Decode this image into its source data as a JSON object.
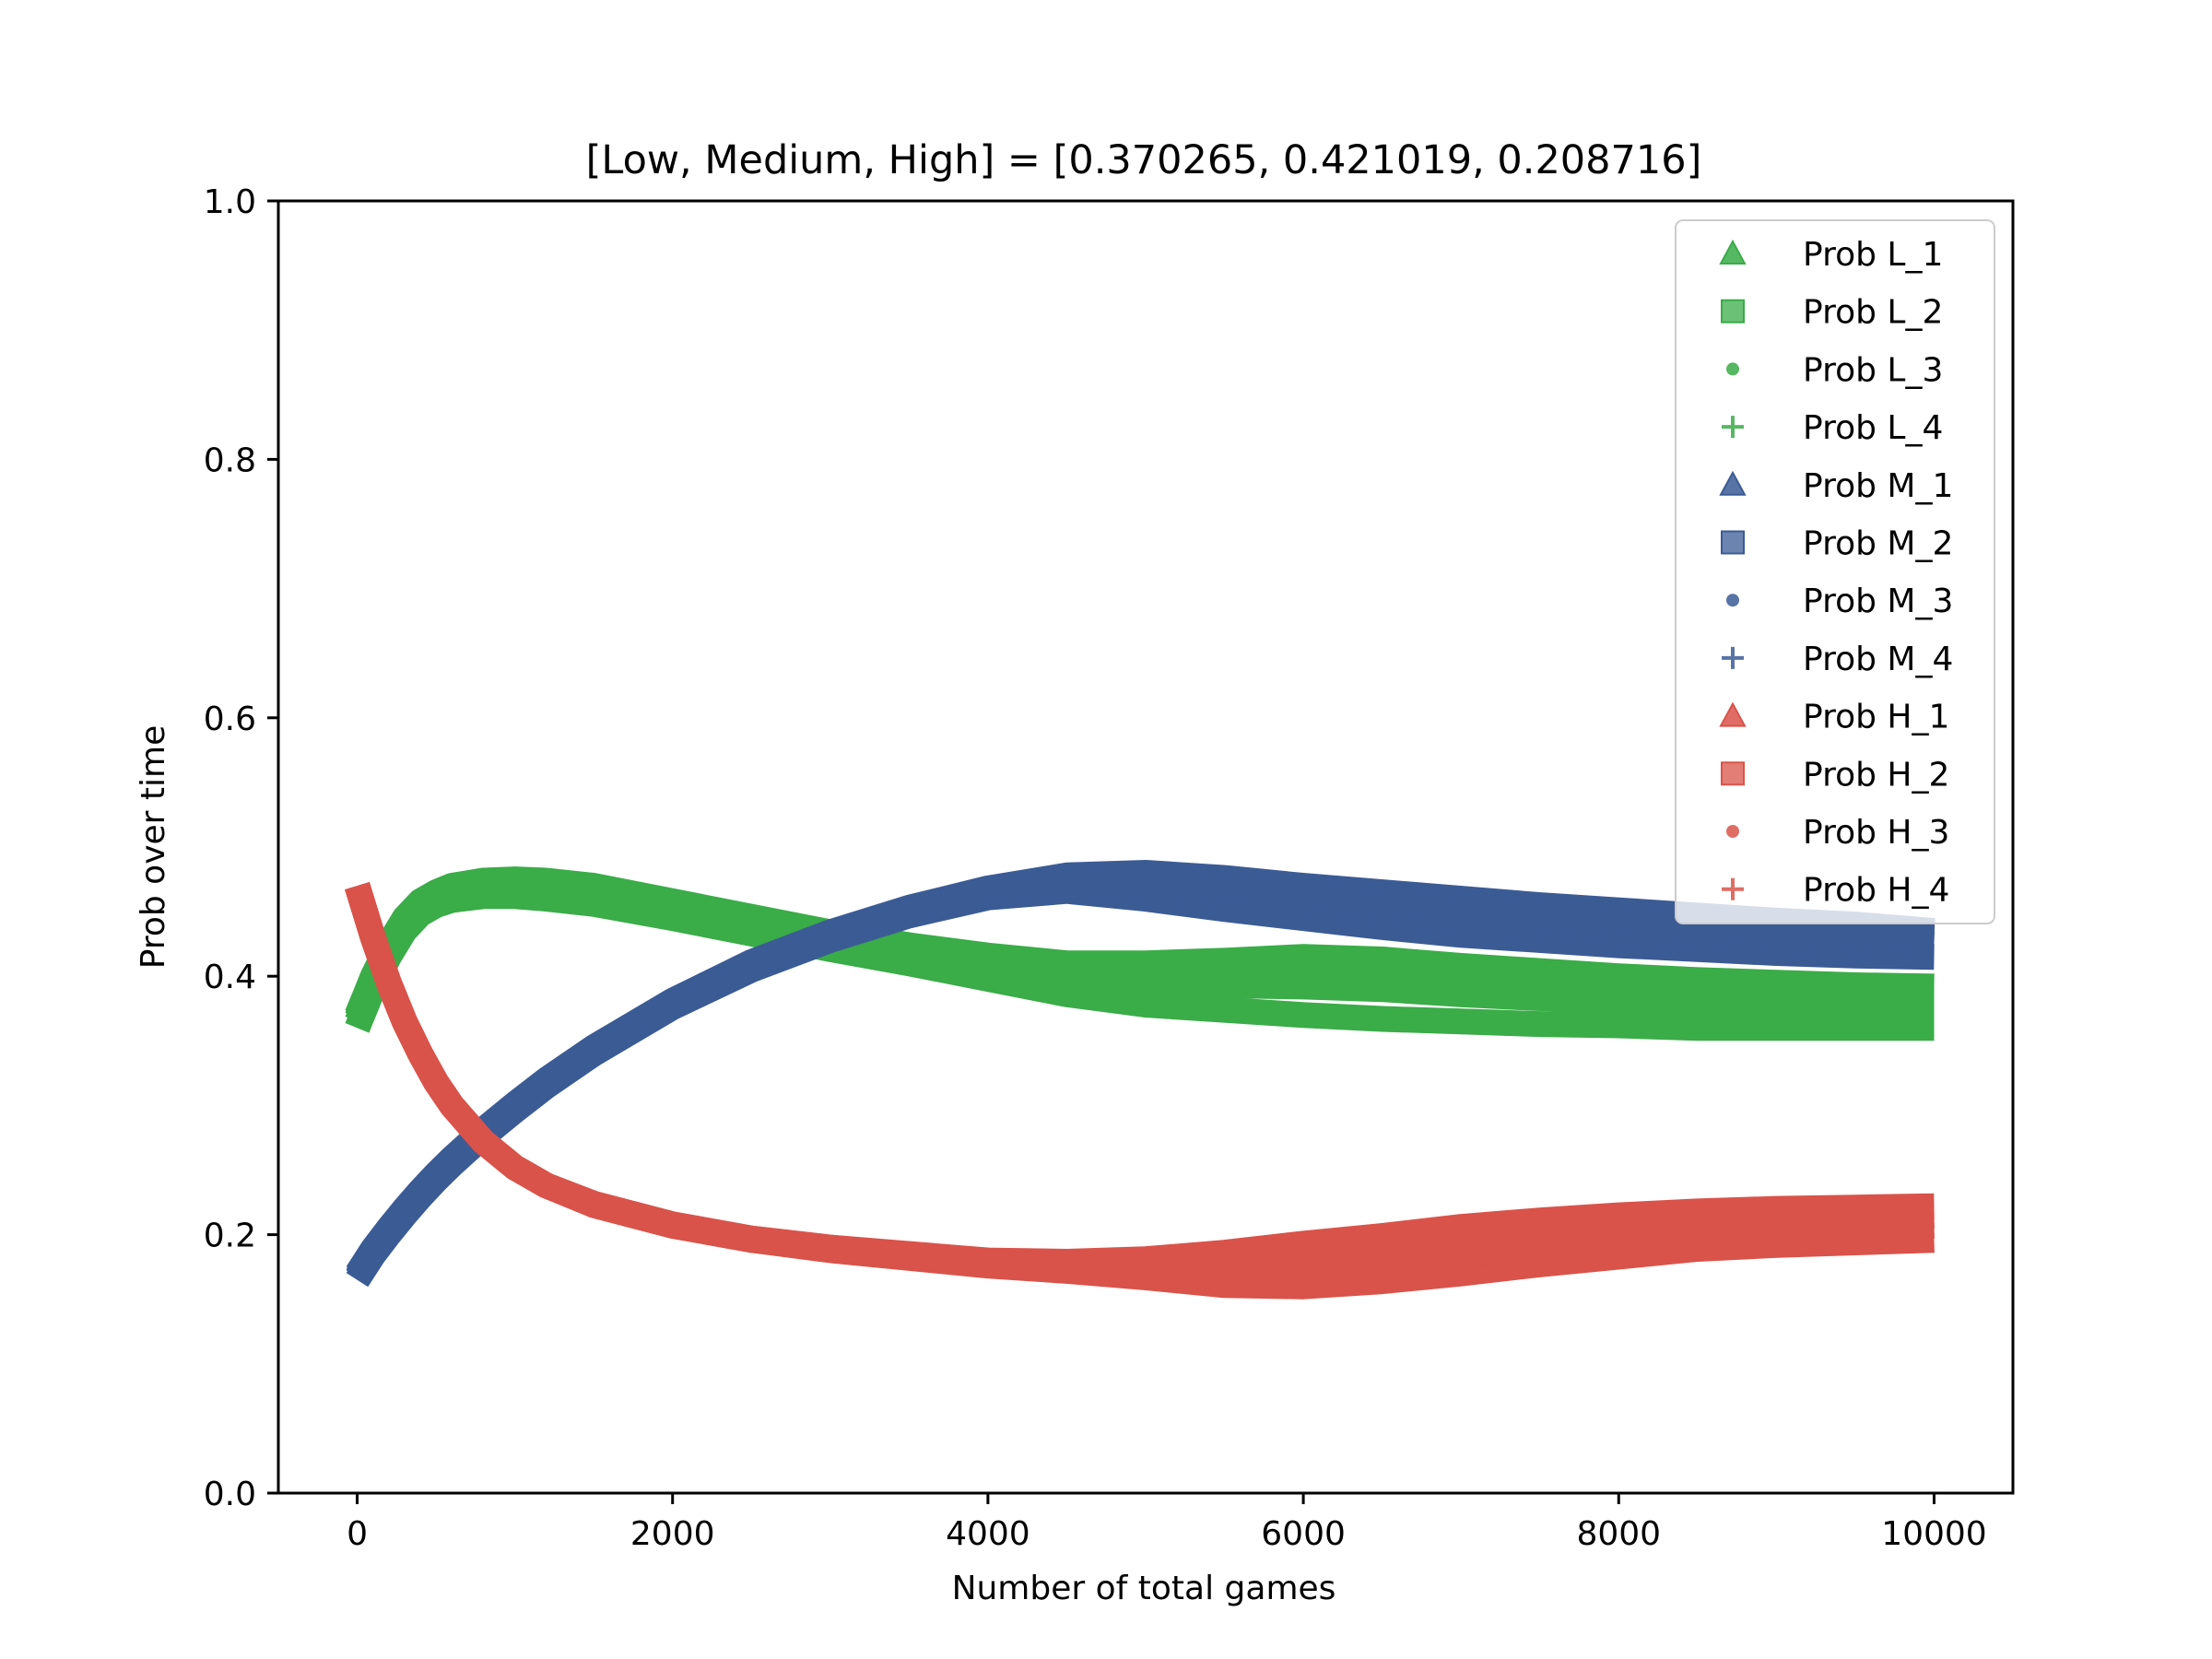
{
  "chart_data": {
    "type": "scatter",
    "title": "[Low, Medium, High] = [0.370265, 0.421019, 0.208716]",
    "xlabel": "Number of total games",
    "ylabel": "Prob over time",
    "xlim": [
      -500,
      10500
    ],
    "ylim": [
      0.0,
      1.0
    ],
    "x_ticks": [
      0,
      2000,
      4000,
      6000,
      8000,
      10000
    ],
    "x_tick_labels": [
      "0",
      "2000",
      "4000",
      "6000",
      "8000",
      "10000"
    ],
    "y_ticks": [
      0.0,
      0.2,
      0.4,
      0.6,
      0.8,
      1.0
    ],
    "y_tick_labels": [
      "0.0",
      "0.2",
      "0.4",
      "0.6",
      "0.8",
      "1.0"
    ],
    "grid": false,
    "legend_position": "top-right",
    "x": [
      0,
      100,
      200,
      300,
      400,
      500,
      600,
      800,
      1000,
      1200,
      1500,
      2000,
      2500,
      3000,
      3500,
      4000,
      4500,
      5000,
      5500,
      6000,
      6500,
      7000,
      7500,
      8000,
      8500,
      9000,
      9500,
      10000
    ],
    "series": [
      {
        "name": "Prob L_1",
        "color": "#3aac48",
        "marker": "triangle",
        "values": [
          0.37,
          0.4,
          0.425,
          0.445,
          0.458,
          0.465,
          0.47,
          0.474,
          0.475,
          0.474,
          0.47,
          0.458,
          0.446,
          0.434,
          0.424,
          0.416,
          0.41,
          0.41,
          0.412,
          0.415,
          0.413,
          0.408,
          0.404,
          0.4,
          0.397,
          0.395,
          0.393,
          0.392
        ]
      },
      {
        "name": "Prob L_2",
        "color": "#3aac48",
        "marker": "square",
        "values": [
          0.36,
          0.39,
          0.415,
          0.435,
          0.448,
          0.455,
          0.459,
          0.462,
          0.462,
          0.46,
          0.456,
          0.445,
          0.433,
          0.421,
          0.41,
          0.398,
          0.386,
          0.378,
          0.374,
          0.37,
          0.367,
          0.365,
          0.363,
          0.362,
          0.36,
          0.36,
          0.36,
          0.36
        ]
      },
      {
        "name": "Prob L_3",
        "color": "#3aac48",
        "marker": "circle",
        "values": [
          0.365,
          0.395,
          0.42,
          0.44,
          0.453,
          0.46,
          0.464,
          0.468,
          0.468,
          0.467,
          0.463,
          0.451,
          0.439,
          0.427,
          0.417,
          0.407,
          0.398,
          0.394,
          0.393,
          0.392,
          0.39,
          0.386,
          0.383,
          0.381,
          0.378,
          0.377,
          0.376,
          0.376
        ]
      },
      {
        "name": "Prob L_4",
        "color": "#3aac48",
        "marker": "plus",
        "values": [
          0.368,
          0.398,
          0.422,
          0.442,
          0.455,
          0.462,
          0.467,
          0.471,
          0.471,
          0.47,
          0.466,
          0.454,
          0.442,
          0.43,
          0.42,
          0.411,
          0.403,
          0.401,
          0.402,
          0.403,
          0.401,
          0.397,
          0.393,
          0.39,
          0.387,
          0.386,
          0.384,
          0.384
        ]
      },
      {
        "name": "Prob M_1",
        "color": "#3b5b95",
        "marker": "triangle",
        "values": [
          0.165,
          0.184,
          0.2,
          0.215,
          0.229,
          0.242,
          0.254,
          0.276,
          0.296,
          0.315,
          0.34,
          0.376,
          0.405,
          0.428,
          0.447,
          0.461,
          0.466,
          0.46,
          0.452,
          0.445,
          0.438,
          0.432,
          0.428,
          0.424,
          0.421,
          0.418,
          0.416,
          0.415
        ]
      },
      {
        "name": "Prob M_2",
        "color": "#3b5b95",
        "marker": "square",
        "values": [
          0.17,
          0.189,
          0.205,
          0.22,
          0.234,
          0.247,
          0.259,
          0.281,
          0.301,
          0.32,
          0.345,
          0.381,
          0.411,
          0.434,
          0.453,
          0.468,
          0.478,
          0.48,
          0.476,
          0.47,
          0.465,
          0.46,
          0.455,
          0.451,
          0.447,
          0.443,
          0.44,
          0.435
        ]
      },
      {
        "name": "Prob M_3",
        "color": "#3b5b95",
        "marker": "circle",
        "values": [
          0.167,
          0.186,
          0.202,
          0.217,
          0.231,
          0.244,
          0.256,
          0.278,
          0.298,
          0.317,
          0.342,
          0.378,
          0.407,
          0.43,
          0.449,
          0.463,
          0.47,
          0.468,
          0.462,
          0.455,
          0.449,
          0.443,
          0.439,
          0.435,
          0.432,
          0.429,
          0.427,
          0.425
        ]
      },
      {
        "name": "Prob M_4",
        "color": "#3b5b95",
        "marker": "plus",
        "values": [
          0.168,
          0.187,
          0.203,
          0.218,
          0.232,
          0.245,
          0.257,
          0.279,
          0.299,
          0.318,
          0.343,
          0.379,
          0.409,
          0.432,
          0.451,
          0.466,
          0.474,
          0.474,
          0.469,
          0.462,
          0.457,
          0.451,
          0.447,
          0.443,
          0.439,
          0.436,
          0.433,
          0.43
        ]
      },
      {
        "name": "Prob H_1",
        "color": "#d9534a",
        "marker": "triangle",
        "values": [
          0.47,
          0.43,
          0.395,
          0.365,
          0.34,
          0.318,
          0.3,
          0.272,
          0.252,
          0.238,
          0.223,
          0.207,
          0.196,
          0.188,
          0.182,
          0.176,
          0.172,
          0.167,
          0.161,
          0.16,
          0.164,
          0.17,
          0.177,
          0.183,
          0.189,
          0.192,
          0.194,
          0.196
        ]
      },
      {
        "name": "Prob H_2",
        "color": "#d9534a",
        "marker": "square",
        "values": [
          0.47,
          0.43,
          0.395,
          0.365,
          0.34,
          0.318,
          0.3,
          0.272,
          0.252,
          0.238,
          0.224,
          0.208,
          0.197,
          0.19,
          0.185,
          0.18,
          0.179,
          0.181,
          0.186,
          0.193,
          0.199,
          0.206,
          0.211,
          0.215,
          0.218,
          0.22,
          0.221,
          0.222
        ]
      },
      {
        "name": "Prob H_3",
        "color": "#d9534a",
        "marker": "circle",
        "values": [
          0.47,
          0.43,
          0.395,
          0.365,
          0.34,
          0.318,
          0.3,
          0.272,
          0.252,
          0.238,
          0.223,
          0.207,
          0.196,
          0.189,
          0.183,
          0.178,
          0.175,
          0.173,
          0.172,
          0.174,
          0.179,
          0.185,
          0.191,
          0.196,
          0.2,
          0.203,
          0.205,
          0.207
        ]
      },
      {
        "name": "Prob H_4",
        "color": "#d9534a",
        "marker": "plus",
        "values": [
          0.47,
          0.43,
          0.395,
          0.365,
          0.34,
          0.318,
          0.3,
          0.272,
          0.252,
          0.238,
          0.224,
          0.208,
          0.197,
          0.19,
          0.184,
          0.179,
          0.177,
          0.177,
          0.179,
          0.183,
          0.189,
          0.195,
          0.201,
          0.205,
          0.209,
          0.212,
          0.213,
          0.215
        ]
      }
    ]
  }
}
